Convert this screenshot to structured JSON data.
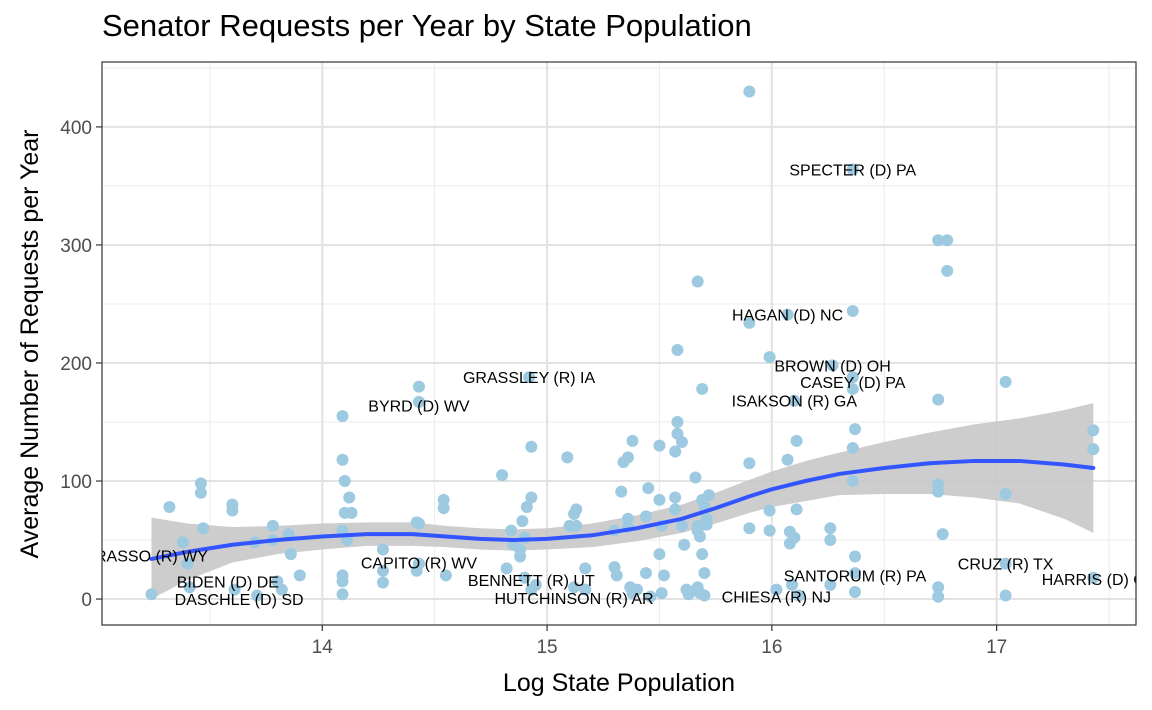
{
  "chart_data": {
    "type": "scatter",
    "title": "Senator Requests per Year by State Population",
    "xlabel": "Log State Population",
    "ylabel": "Average Number of Requests per Year",
    "xlim": [
      13.02,
      17.62
    ],
    "ylim": [
      -22,
      455
    ],
    "xticks": [
      14,
      15,
      16,
      17
    ],
    "yticks": [
      0,
      100,
      200,
      300,
      400
    ],
    "grid": true,
    "point_color": "#9ecae1",
    "smooth_color": "#3355ff",
    "band_color": "#c8c8c8",
    "points": [
      [
        13.24,
        4
      ],
      [
        13.32,
        78
      ],
      [
        13.38,
        48
      ],
      [
        13.4,
        30
      ],
      [
        13.41,
        10
      ],
      [
        13.46,
        98
      ],
      [
        13.46,
        90
      ],
      [
        13.47,
        60
      ],
      [
        13.6,
        80
      ],
      [
        13.6,
        75
      ],
      [
        13.61,
        8
      ],
      [
        13.7,
        48
      ],
      [
        13.71,
        3
      ],
      [
        13.78,
        62
      ],
      [
        13.78,
        50
      ],
      [
        13.8,
        15
      ],
      [
        13.82,
        8
      ],
      [
        13.85,
        55
      ],
      [
        13.86,
        38
      ],
      [
        13.9,
        20
      ],
      [
        14.09,
        155
      ],
      [
        14.09,
        118
      ],
      [
        14.1,
        100
      ],
      [
        14.1,
        73
      ],
      [
        14.12,
        86
      ],
      [
        14.13,
        73
      ],
      [
        14.09,
        58
      ],
      [
        14.11,
        50
      ],
      [
        14.09,
        20
      ],
      [
        14.09,
        15
      ],
      [
        14.09,
        4
      ],
      [
        14.27,
        42
      ],
      [
        14.27,
        24
      ],
      [
        14.27,
        14
      ],
      [
        14.42,
        65
      ],
      [
        14.43,
        64
      ],
      [
        14.43,
        180
      ],
      [
        14.43,
        167
      ],
      [
        14.43,
        30
      ],
      [
        14.42,
        24
      ],
      [
        14.54,
        84
      ],
      [
        14.54,
        77
      ],
      [
        14.55,
        20
      ],
      [
        14.8,
        105
      ],
      [
        14.82,
        26
      ],
      [
        14.84,
        58
      ],
      [
        14.85,
        46
      ],
      [
        14.88,
        36
      ],
      [
        14.89,
        66
      ],
      [
        14.9,
        52
      ],
      [
        14.91,
        78
      ],
      [
        14.92,
        188
      ],
      [
        14.93,
        129
      ],
      [
        14.93,
        86
      ],
      [
        14.93,
        8
      ],
      [
        14.95,
        12
      ],
      [
        14.9,
        18
      ],
      [
        14.88,
        42
      ],
      [
        15.09,
        120
      ],
      [
        15.1,
        62
      ],
      [
        15.12,
        72
      ],
      [
        15.13,
        76
      ],
      [
        15.13,
        62
      ],
      [
        15.12,
        10
      ],
      [
        15.17,
        26
      ],
      [
        15.17,
        8
      ],
      [
        15.3,
        58
      ],
      [
        15.3,
        27
      ],
      [
        15.31,
        20
      ],
      [
        15.33,
        91
      ],
      [
        15.34,
        116
      ],
      [
        15.36,
        120
      ],
      [
        15.38,
        134
      ],
      [
        15.36,
        68
      ],
      [
        15.36,
        61
      ],
      [
        15.37,
        10
      ],
      [
        15.38,
        5
      ],
      [
        15.4,
        8
      ],
      [
        15.45,
        94
      ],
      [
        15.44,
        70
      ],
      [
        15.44,
        22
      ],
      [
        15.46,
        2
      ],
      [
        15.5,
        130
      ],
      [
        15.5,
        84
      ],
      [
        15.51,
        62
      ],
      [
        15.52,
        20
      ],
      [
        15.5,
        38
      ],
      [
        15.51,
        5
      ],
      [
        15.57,
        125
      ],
      [
        15.58,
        150
      ],
      [
        15.58,
        140
      ],
      [
        15.58,
        211
      ],
      [
        15.6,
        133
      ],
      [
        15.61,
        46
      ],
      [
        15.57,
        86
      ],
      [
        15.57,
        76
      ],
      [
        15.6,
        62
      ],
      [
        15.62,
        8
      ],
      [
        15.63,
        4
      ],
      [
        15.67,
        269
      ],
      [
        15.66,
        103
      ],
      [
        15.67,
        62
      ],
      [
        15.67,
        58
      ],
      [
        15.68,
        53
      ],
      [
        15.69,
        178
      ],
      [
        15.69,
        84
      ],
      [
        15.7,
        78
      ],
      [
        15.71,
        68
      ],
      [
        15.72,
        88
      ],
      [
        15.71,
        63
      ],
      [
        15.67,
        10
      ],
      [
        15.68,
        5
      ],
      [
        15.7,
        3
      ],
      [
        15.69,
        38
      ],
      [
        15.7,
        22
      ],
      [
        15.9,
        430
      ],
      [
        15.9,
        234
      ],
      [
        15.9,
        115
      ],
      [
        15.9,
        60
      ],
      [
        15.99,
        205
      ],
      [
        15.99,
        75
      ],
      [
        15.99,
        58
      ],
      [
        16.02,
        8
      ],
      [
        16.07,
        241
      ],
      [
        16.07,
        118
      ],
      [
        16.08,
        57
      ],
      [
        16.08,
        47
      ],
      [
        16.09,
        12
      ],
      [
        16.1,
        168
      ],
      [
        16.11,
        134
      ],
      [
        16.1,
        52
      ],
      [
        16.11,
        76
      ],
      [
        16.12,
        3
      ],
      [
        16.26,
        60
      ],
      [
        16.26,
        50
      ],
      [
        16.26,
        12
      ],
      [
        16.27,
        198
      ],
      [
        16.36,
        364
      ],
      [
        16.36,
        244
      ],
      [
        16.36,
        188
      ],
      [
        16.36,
        178
      ],
      [
        16.37,
        144
      ],
      [
        16.36,
        128
      ],
      [
        16.36,
        100
      ],
      [
        16.37,
        36
      ],
      [
        16.37,
        22
      ],
      [
        16.37,
        6
      ],
      [
        16.74,
        304
      ],
      [
        16.78,
        304
      ],
      [
        16.78,
        278
      ],
      [
        16.74,
        169
      ],
      [
        16.74,
        97
      ],
      [
        16.74,
        91
      ],
      [
        16.76,
        55
      ],
      [
        16.74,
        10
      ],
      [
        16.74,
        2
      ],
      [
        17.04,
        184
      ],
      [
        17.04,
        89
      ],
      [
        17.04,
        30
      ],
      [
        17.04,
        3
      ],
      [
        17.43,
        143
      ],
      [
        17.43,
        127
      ],
      [
        17.43,
        18
      ]
    ],
    "smooth": [
      [
        13.24,
        34
      ],
      [
        13.4,
        40
      ],
      [
        13.6,
        46
      ],
      [
        13.8,
        50
      ],
      [
        14.0,
        53
      ],
      [
        14.2,
        55
      ],
      [
        14.4,
        55
      ],
      [
        14.55,
        53
      ],
      [
        14.7,
        51
      ],
      [
        14.85,
        50
      ],
      [
        15.0,
        51
      ],
      [
        15.2,
        54
      ],
      [
        15.4,
        60
      ],
      [
        15.6,
        68
      ],
      [
        15.75,
        77
      ],
      [
        15.9,
        87
      ],
      [
        16.0,
        93
      ],
      [
        16.15,
        100
      ],
      [
        16.3,
        106
      ],
      [
        16.5,
        111
      ],
      [
        16.7,
        115
      ],
      [
        16.9,
        117
      ],
      [
        17.1,
        117
      ],
      [
        17.3,
        114
      ],
      [
        17.43,
        111
      ]
    ],
    "band_upper": [
      [
        13.24,
        69
      ],
      [
        13.4,
        64
      ],
      [
        13.6,
        61
      ],
      [
        13.8,
        62
      ],
      [
        14.0,
        64
      ],
      [
        14.2,
        65
      ],
      [
        14.4,
        65
      ],
      [
        14.55,
        62
      ],
      [
        14.7,
        60
      ],
      [
        14.85,
        59
      ],
      [
        15.0,
        60
      ],
      [
        15.2,
        64
      ],
      [
        15.4,
        71
      ],
      [
        15.6,
        80
      ],
      [
        15.75,
        90
      ],
      [
        15.9,
        101
      ],
      [
        16.0,
        108
      ],
      [
        16.15,
        117
      ],
      [
        16.3,
        124
      ],
      [
        16.5,
        133
      ],
      [
        16.7,
        141
      ],
      [
        16.9,
        148
      ],
      [
        17.1,
        153
      ],
      [
        17.3,
        160
      ],
      [
        17.43,
        166
      ]
    ],
    "band_lower": [
      [
        13.24,
        0
      ],
      [
        13.4,
        16
      ],
      [
        13.6,
        31
      ],
      [
        13.8,
        38
      ],
      [
        14.0,
        42
      ],
      [
        14.2,
        45
      ],
      [
        14.4,
        45
      ],
      [
        14.55,
        44
      ],
      [
        14.7,
        42
      ],
      [
        14.85,
        41
      ],
      [
        15.0,
        42
      ],
      [
        15.2,
        44
      ],
      [
        15.4,
        49
      ],
      [
        15.6,
        56
      ],
      [
        15.75,
        64
      ],
      [
        15.9,
        73
      ],
      [
        16.0,
        78
      ],
      [
        16.15,
        83
      ],
      [
        16.3,
        88
      ],
      [
        16.5,
        89
      ],
      [
        16.7,
        89
      ],
      [
        16.9,
        86
      ],
      [
        17.1,
        81
      ],
      [
        17.3,
        68
      ],
      [
        17.43,
        56
      ]
    ],
    "labels": [
      {
        "text": "SPECTER (D) PA",
        "x": 16.36,
        "y": 364
      },
      {
        "text": "HAGAN (D) NC",
        "x": 16.07,
        "y": 241
      },
      {
        "text": "BROWN (D) OH",
        "x": 16.27,
        "y": 198
      },
      {
        "text": "CASEY (D) PA",
        "x": 16.36,
        "y": 184
      },
      {
        "text": "ISAKSON (R) GA",
        "x": 16.1,
        "y": 168
      },
      {
        "text": "GRASSLEY (R) IA",
        "x": 14.92,
        "y": 188
      },
      {
        "text": "BYRD (D) WV",
        "x": 14.43,
        "y": 164
      },
      {
        "text": "CAPITO (R) WV",
        "x": 14.43,
        "y": 31
      },
      {
        "text": "BENNETT (R) UT",
        "x": 14.93,
        "y": 16
      },
      {
        "text": "HUTCHINSON (R) AR",
        "x": 15.12,
        "y": 1
      },
      {
        "text": "CHIESA (R) NJ",
        "x": 16.02,
        "y": 2
      },
      {
        "text": "SANTORUM (R) PA",
        "x": 16.37,
        "y": 20
      },
      {
        "text": "CRUZ (R) TX",
        "x": 17.04,
        "y": 30
      },
      {
        "text": "HARRIS (D) C",
        "x": 17.43,
        "y": 17
      },
      {
        "text": "RASSO (R) WY",
        "x": 13.24,
        "y": 37
      },
      {
        "text": "BIDEN (D) DE",
        "x": 13.58,
        "y": 15
      },
      {
        "text": "DASCHLE (D) SD",
        "x": 13.63,
        "y": 0
      }
    ]
  }
}
